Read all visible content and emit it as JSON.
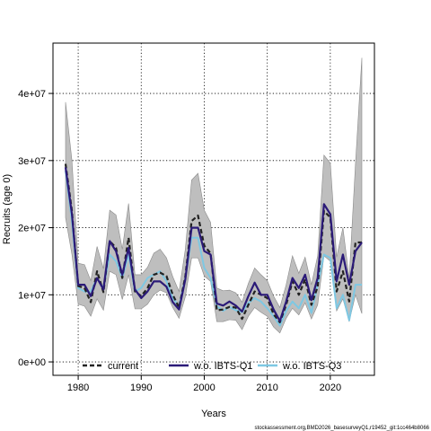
{
  "chart_data": {
    "type": "line",
    "title": "",
    "xlabel": "Years",
    "ylabel": "Recruits (age 0)",
    "footnote": "stockassessment.org,BMD2026_basesurveyQ1,r19452_git:1cc464b8066",
    "xlim": [
      1976,
      2027
    ],
    "ylim": [
      -2000000,
      47500000
    ],
    "x_ticks": [
      1980,
      1990,
      2000,
      2010,
      2020
    ],
    "y_ticks": [
      0,
      10000000,
      20000000,
      30000000,
      40000000
    ],
    "y_tick_labels": [
      "0e+00",
      "1e+07",
      "2e+07",
      "3e+07",
      "4e+07"
    ],
    "grid": true,
    "legend_position": "bottom",
    "colors": {
      "current": "#222222",
      "current_band": "#bebebe",
      "wo_q1": "#2b1a78",
      "wo_q3": "#7ec8e3"
    },
    "x": [
      1978,
      1979,
      1980,
      1981,
      1982,
      1983,
      1984,
      1985,
      1986,
      1987,
      1988,
      1989,
      1990,
      1991,
      1992,
      1993,
      1994,
      1995,
      1996,
      1997,
      1998,
      1999,
      2000,
      2001,
      2002,
      2003,
      2004,
      2005,
      2006,
      2007,
      2008,
      2009,
      2010,
      2011,
      2012,
      2013,
      2014,
      2015,
      2016,
      2017,
      2018,
      2019,
      2020,
      2021,
      2022,
      2023,
      2024,
      2025
    ],
    "band": {
      "name": "current confidence interval",
      "lower": [
        21500000,
        16000000,
        8600000,
        8300000,
        6800000,
        9400000,
        7700000,
        13500000,
        13000000,
        9300000,
        13000000,
        7900000,
        7900000,
        8600000,
        10000000,
        10700000,
        10300000,
        8100000,
        6500000,
        9700000,
        15500000,
        15500000,
        12800000,
        12000000,
        6000000,
        6000000,
        6300000,
        6200000,
        4800000,
        6800000,
        8100000,
        7400000,
        6800000,
        5200000,
        4300000,
        6500000,
        8000000,
        7000000,
        8800000,
        6400000,
        8500000,
        15800000,
        15000000,
        7600000,
        9400000,
        6000000,
        10000000,
        7200000
      ],
      "upper": [
        38700000,
        30000000,
        14700000,
        14500000,
        12100000,
        17200000,
        13900000,
        22600000,
        21900000,
        16800000,
        23600000,
        13000000,
        13000000,
        14100000,
        16200000,
        16800000,
        15500000,
        12700000,
        10500000,
        16800000,
        27100000,
        28100000,
        22600000,
        20800000,
        11000000,
        10600000,
        10700000,
        10300000,
        8900000,
        11700000,
        14000000,
        13000000,
        12100000,
        9800000,
        8100000,
        11500000,
        15800000,
        13200000,
        15600000,
        11500000,
        15800000,
        30800000,
        29600000,
        15600000,
        20000000,
        12500000,
        29500000,
        45300000
      ]
    },
    "series": [
      {
        "name": "current",
        "values": [
          29500000,
          22500000,
          11300000,
          11000000,
          8900000,
          13500000,
          10400000,
          18000000,
          17000000,
          12500000,
          18500000,
          10500000,
          9800000,
          11000000,
          13000000,
          13300000,
          12800000,
          10000000,
          8100000,
          12700000,
          21000000,
          21800000,
          17300000,
          16200000,
          7700000,
          7800000,
          8200000,
          8100000,
          6400000,
          8500000,
          10500000,
          10000000,
          9500000,
          7100000,
          5900000,
          8500000,
          12000000,
          10000000,
          12300000,
          8500000,
          11200000,
          22500000,
          21500000,
          10500000,
          13500000,
          9000000,
          17800000,
          17800000
        ]
      },
      {
        "name": "w.o. IBTS-Q1",
        "values": [
          29000000,
          22000000,
          11500000,
          11500000,
          9800000,
          12500000,
          10800000,
          18000000,
          16500000,
          13000000,
          17000000,
          10800000,
          9500000,
          10500000,
          12000000,
          12000000,
          11200000,
          8900000,
          7800000,
          12300000,
          20000000,
          20000000,
          16500000,
          16000000,
          8700000,
          8400000,
          9000000,
          8400000,
          7500000,
          9800000,
          11800000,
          10000000,
          10000000,
          7800000,
          6100000,
          9000000,
          12500000,
          11000000,
          13000000,
          9200000,
          12500000,
          23500000,
          22000000,
          12000000,
          16000000,
          11500000,
          16500000,
          17800000
        ]
      },
      {
        "name": "w.o. IBTS-Q3",
        "values": [
          28500000,
          21000000,
          11000000,
          10500000,
          10500000,
          12500000,
          11000000,
          16000000,
          15000000,
          12500000,
          16000000,
          10500000,
          11000000,
          12500000,
          13000000,
          13500000,
          12000000,
          9500000,
          8300000,
          12500000,
          18500000,
          18500000,
          14000000,
          12500000,
          8300000,
          7600000,
          8200000,
          7700000,
          7400000,
          8800000,
          9500000,
          9000000,
          8000000,
          6800000,
          5400000,
          7600000,
          9000000,
          8000000,
          10000000,
          7300000,
          11500000,
          16000000,
          15500000,
          8000000,
          10000000,
          6200000,
          11500000,
          11500000
        ]
      }
    ]
  }
}
